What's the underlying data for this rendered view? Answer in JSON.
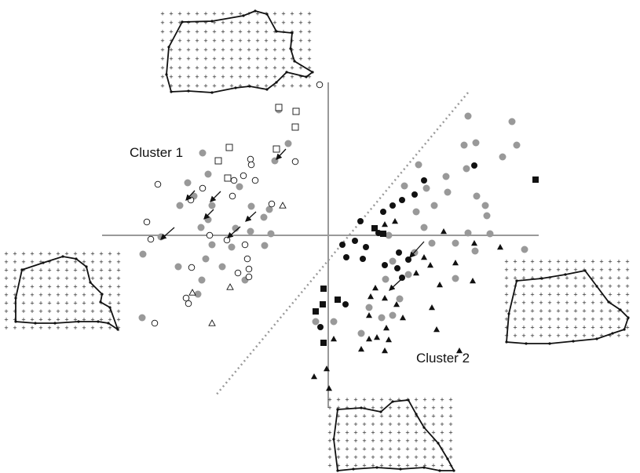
{
  "labels": {
    "cluster_1": "Cluster 1",
    "cluster_2": "Cluster 2"
  }
}
